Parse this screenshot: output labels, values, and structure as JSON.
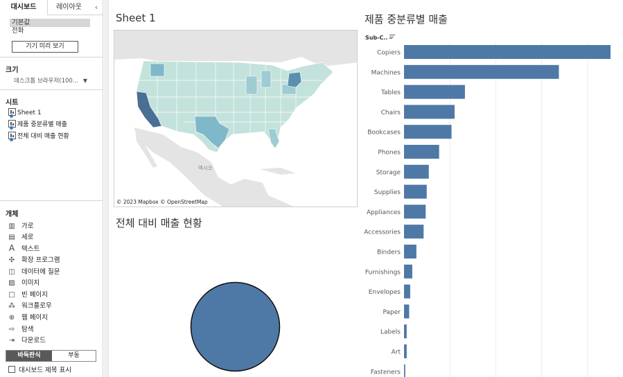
{
  "left_panel": {
    "tabs": {
      "dashboard": "대시보드",
      "layout": "레이아웃"
    },
    "devices": [
      "기본값",
      "전화"
    ],
    "preview_button": "기기 미리 보기",
    "size": {
      "title": "크기",
      "value": "데스크톱 브라우저(100..."
    },
    "sheets": {
      "title": "시트",
      "items": [
        "Sheet 1",
        "제품 중분류별 매출",
        "전체 대비 매출 현황"
      ]
    },
    "objects": {
      "title": "개체",
      "items": [
        {
          "label": "가로",
          "icon": "horizontal-container-icon"
        },
        {
          "label": "세로",
          "icon": "vertical-container-icon"
        },
        {
          "label": "텍스트",
          "icon": "text-icon"
        },
        {
          "label": "확장 프로그램",
          "icon": "extension-icon"
        },
        {
          "label": "데이터에 질문",
          "icon": "ask-data-icon"
        },
        {
          "label": "이미지",
          "icon": "image-icon"
        },
        {
          "label": "빈 페이지",
          "icon": "blank-icon"
        },
        {
          "label": "워크플로우",
          "icon": "workflow-icon"
        },
        {
          "label": "웹 페이지",
          "icon": "web-page-icon"
        },
        {
          "label": "탐색",
          "icon": "navigation-icon"
        },
        {
          "label": "다운로드",
          "icon": "download-icon"
        }
      ]
    },
    "layout_toggle": {
      "tiled": "바둑판식",
      "floating": "부동"
    },
    "show_title": "대시보드 제목 표시"
  },
  "sheet1": {
    "title": "Sheet 1",
    "attribution": "© 2023 Mapbox  © OpenStreetMap",
    "map_label": "멕시코"
  },
  "pie_sheet": {
    "title": "전체 대비 매출 현황"
  },
  "bar_sheet": {
    "title": "제품 중분류별 매출",
    "header": "Sub-C.."
  },
  "colors": {
    "bar": "#4e79a7",
    "pie": "#4e79a7",
    "map_high": "#4a6f94",
    "map_mid": "#7fb8c8",
    "map_low": "#c3e2dc"
  },
  "chart_data": {
    "type": "bar",
    "orientation": "horizontal",
    "dimension": "Sub-Category",
    "categories": [
      "Copiers",
      "Machines",
      "Tables",
      "Chairs",
      "Bookcases",
      "Phones",
      "Storage",
      "Supplies",
      "Appliances",
      "Accessories",
      "Binders",
      "Furnishings",
      "Envelopes",
      "Paper",
      "Labels",
      "Art",
      "Fasteners"
    ],
    "values": [
      100,
      75,
      29.5,
      24.5,
      23,
      17,
      12,
      11,
      10.5,
      9.5,
      6,
      4,
      3,
      2.5,
      1.3,
      1.3,
      0.6
    ],
    "title": "제품 중분류별 매출",
    "grid": true
  }
}
